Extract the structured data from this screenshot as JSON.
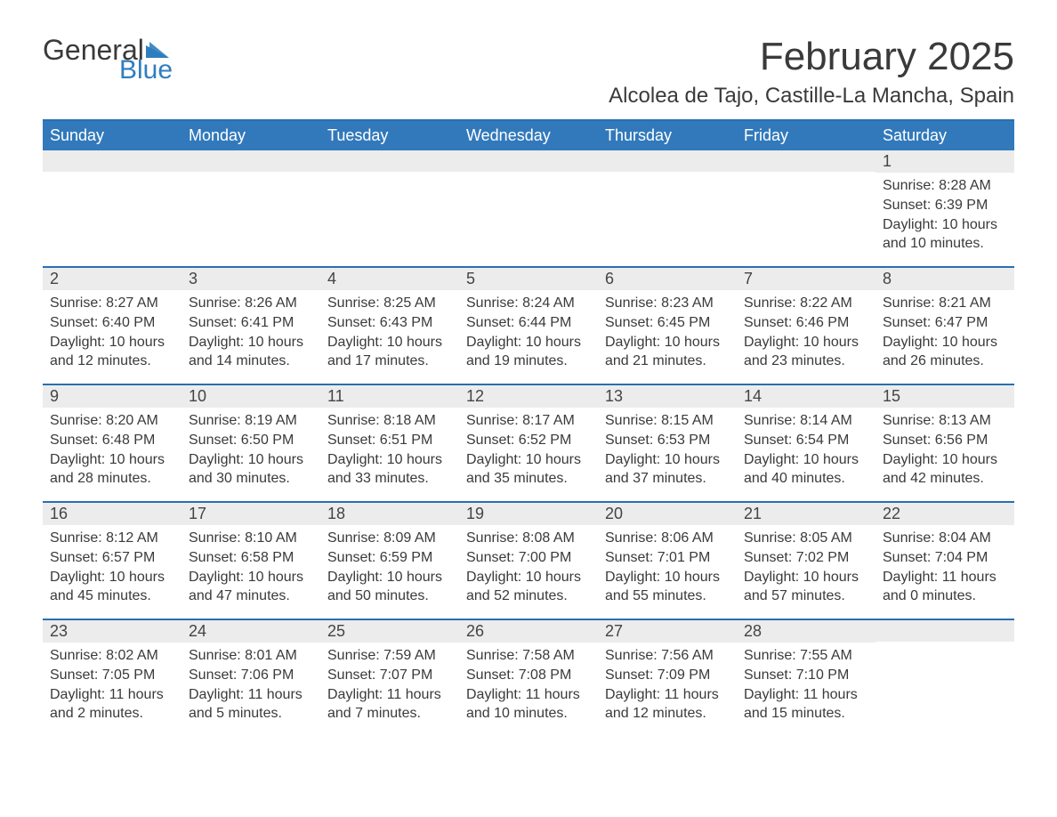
{
  "brand": {
    "general": "General",
    "blue": "Blue",
    "triangle_color": "#2f7ebf",
    "text_color": "#3a3a3a"
  },
  "title": "February 2025",
  "location": "Alcolea de Tajo, Castille-La Mancha, Spain",
  "colors": {
    "header_bg": "#3279bb",
    "header_text": "#ffffff",
    "rule": "#2a6fb0",
    "daynum_bg": "#ececec",
    "page_bg": "#ffffff",
    "body_text": "#3a3a3a"
  },
  "layout": {
    "columns": 7,
    "rows": 5,
    "day_fontsize": 16,
    "weekday_fontsize": 18,
    "title_fontsize": 44,
    "location_fontsize": 24
  },
  "weekdays": [
    "Sunday",
    "Monday",
    "Tuesday",
    "Wednesday",
    "Thursday",
    "Friday",
    "Saturday"
  ],
  "weeks": [
    [
      {
        "n": "",
        "sunrise": "",
        "sunset": "",
        "daylight": ""
      },
      {
        "n": "",
        "sunrise": "",
        "sunset": "",
        "daylight": ""
      },
      {
        "n": "",
        "sunrise": "",
        "sunset": "",
        "daylight": ""
      },
      {
        "n": "",
        "sunrise": "",
        "sunset": "",
        "daylight": ""
      },
      {
        "n": "",
        "sunrise": "",
        "sunset": "",
        "daylight": ""
      },
      {
        "n": "",
        "sunrise": "",
        "sunset": "",
        "daylight": ""
      },
      {
        "n": "1",
        "sunrise": "Sunrise: 8:28 AM",
        "sunset": "Sunset: 6:39 PM",
        "daylight": "Daylight: 10 hours and 10 minutes."
      }
    ],
    [
      {
        "n": "2",
        "sunrise": "Sunrise: 8:27 AM",
        "sunset": "Sunset: 6:40 PM",
        "daylight": "Daylight: 10 hours and 12 minutes."
      },
      {
        "n": "3",
        "sunrise": "Sunrise: 8:26 AM",
        "sunset": "Sunset: 6:41 PM",
        "daylight": "Daylight: 10 hours and 14 minutes."
      },
      {
        "n": "4",
        "sunrise": "Sunrise: 8:25 AM",
        "sunset": "Sunset: 6:43 PM",
        "daylight": "Daylight: 10 hours and 17 minutes."
      },
      {
        "n": "5",
        "sunrise": "Sunrise: 8:24 AM",
        "sunset": "Sunset: 6:44 PM",
        "daylight": "Daylight: 10 hours and 19 minutes."
      },
      {
        "n": "6",
        "sunrise": "Sunrise: 8:23 AM",
        "sunset": "Sunset: 6:45 PM",
        "daylight": "Daylight: 10 hours and 21 minutes."
      },
      {
        "n": "7",
        "sunrise": "Sunrise: 8:22 AM",
        "sunset": "Sunset: 6:46 PM",
        "daylight": "Daylight: 10 hours and 23 minutes."
      },
      {
        "n": "8",
        "sunrise": "Sunrise: 8:21 AM",
        "sunset": "Sunset: 6:47 PM",
        "daylight": "Daylight: 10 hours and 26 minutes."
      }
    ],
    [
      {
        "n": "9",
        "sunrise": "Sunrise: 8:20 AM",
        "sunset": "Sunset: 6:48 PM",
        "daylight": "Daylight: 10 hours and 28 minutes."
      },
      {
        "n": "10",
        "sunrise": "Sunrise: 8:19 AM",
        "sunset": "Sunset: 6:50 PM",
        "daylight": "Daylight: 10 hours and 30 minutes."
      },
      {
        "n": "11",
        "sunrise": "Sunrise: 8:18 AM",
        "sunset": "Sunset: 6:51 PM",
        "daylight": "Daylight: 10 hours and 33 minutes."
      },
      {
        "n": "12",
        "sunrise": "Sunrise: 8:17 AM",
        "sunset": "Sunset: 6:52 PM",
        "daylight": "Daylight: 10 hours and 35 minutes."
      },
      {
        "n": "13",
        "sunrise": "Sunrise: 8:15 AM",
        "sunset": "Sunset: 6:53 PM",
        "daylight": "Daylight: 10 hours and 37 minutes."
      },
      {
        "n": "14",
        "sunrise": "Sunrise: 8:14 AM",
        "sunset": "Sunset: 6:54 PM",
        "daylight": "Daylight: 10 hours and 40 minutes."
      },
      {
        "n": "15",
        "sunrise": "Sunrise: 8:13 AM",
        "sunset": "Sunset: 6:56 PM",
        "daylight": "Daylight: 10 hours and 42 minutes."
      }
    ],
    [
      {
        "n": "16",
        "sunrise": "Sunrise: 8:12 AM",
        "sunset": "Sunset: 6:57 PM",
        "daylight": "Daylight: 10 hours and 45 minutes."
      },
      {
        "n": "17",
        "sunrise": "Sunrise: 8:10 AM",
        "sunset": "Sunset: 6:58 PM",
        "daylight": "Daylight: 10 hours and 47 minutes."
      },
      {
        "n": "18",
        "sunrise": "Sunrise: 8:09 AM",
        "sunset": "Sunset: 6:59 PM",
        "daylight": "Daylight: 10 hours and 50 minutes."
      },
      {
        "n": "19",
        "sunrise": "Sunrise: 8:08 AM",
        "sunset": "Sunset: 7:00 PM",
        "daylight": "Daylight: 10 hours and 52 minutes."
      },
      {
        "n": "20",
        "sunrise": "Sunrise: 8:06 AM",
        "sunset": "Sunset: 7:01 PM",
        "daylight": "Daylight: 10 hours and 55 minutes."
      },
      {
        "n": "21",
        "sunrise": "Sunrise: 8:05 AM",
        "sunset": "Sunset: 7:02 PM",
        "daylight": "Daylight: 10 hours and 57 minutes."
      },
      {
        "n": "22",
        "sunrise": "Sunrise: 8:04 AM",
        "sunset": "Sunset: 7:04 PM",
        "daylight": "Daylight: 11 hours and 0 minutes."
      }
    ],
    [
      {
        "n": "23",
        "sunrise": "Sunrise: 8:02 AM",
        "sunset": "Sunset: 7:05 PM",
        "daylight": "Daylight: 11 hours and 2 minutes."
      },
      {
        "n": "24",
        "sunrise": "Sunrise: 8:01 AM",
        "sunset": "Sunset: 7:06 PM",
        "daylight": "Daylight: 11 hours and 5 minutes."
      },
      {
        "n": "25",
        "sunrise": "Sunrise: 7:59 AM",
        "sunset": "Sunset: 7:07 PM",
        "daylight": "Daylight: 11 hours and 7 minutes."
      },
      {
        "n": "26",
        "sunrise": "Sunrise: 7:58 AM",
        "sunset": "Sunset: 7:08 PM",
        "daylight": "Daylight: 11 hours and 10 minutes."
      },
      {
        "n": "27",
        "sunrise": "Sunrise: 7:56 AM",
        "sunset": "Sunset: 7:09 PM",
        "daylight": "Daylight: 11 hours and 12 minutes."
      },
      {
        "n": "28",
        "sunrise": "Sunrise: 7:55 AM",
        "sunset": "Sunset: 7:10 PM",
        "daylight": "Daylight: 11 hours and 15 minutes."
      },
      {
        "n": "",
        "sunrise": "",
        "sunset": "",
        "daylight": ""
      }
    ]
  ]
}
